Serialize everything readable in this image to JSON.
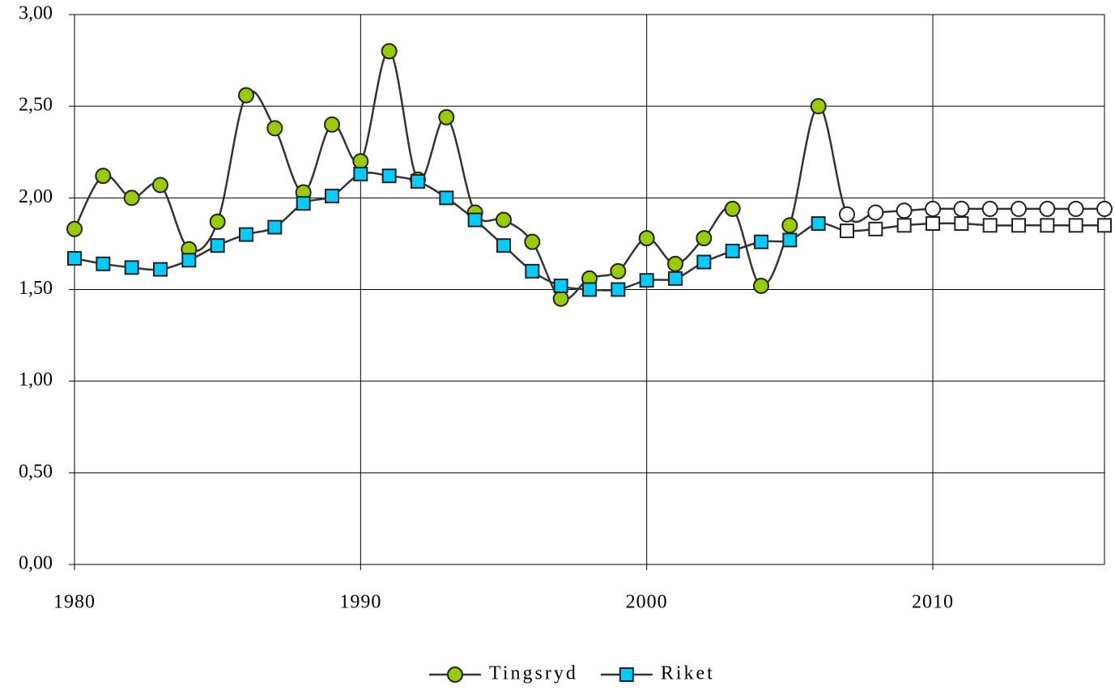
{
  "chart_data": {
    "type": "line",
    "x": [
      1980,
      1981,
      1982,
      1983,
      1984,
      1985,
      1986,
      1987,
      1988,
      1989,
      1990,
      1991,
      1992,
      1993,
      1994,
      1995,
      1996,
      1997,
      1998,
      1999,
      2000,
      2001,
      2002,
      2003,
      2004,
      2005,
      2006,
      2007,
      2008,
      2009,
      2010,
      2011,
      2012,
      2013,
      2014,
      2015,
      2016
    ],
    "series": [
      {
        "name": "Tingsryd",
        "color": "#99cc00",
        "marker": "circle",
        "values": [
          1.83,
          2.12,
          2.0,
          2.07,
          1.72,
          1.87,
          2.56,
          2.38,
          2.03,
          2.4,
          2.2,
          2.8,
          2.1,
          2.44,
          1.92,
          1.88,
          1.76,
          1.45,
          1.56,
          1.6,
          1.78,
          1.64,
          1.78,
          1.94,
          1.52,
          1.85,
          2.5,
          1.91,
          1.92,
          1.93,
          1.94,
          1.94,
          1.94,
          1.94,
          1.94,
          1.94,
          1.94
        ]
      },
      {
        "name": "Riket",
        "color": "#00ccff",
        "marker": "square",
        "values": [
          1.67,
          1.64,
          1.62,
          1.61,
          1.66,
          1.74,
          1.8,
          1.84,
          1.97,
          2.01,
          2.13,
          2.12,
          2.09,
          2.0,
          1.88,
          1.74,
          1.6,
          1.52,
          1.5,
          1.5,
          1.55,
          1.56,
          1.65,
          1.71,
          1.76,
          1.77,
          1.86,
          1.82,
          1.83,
          1.85,
          1.86,
          1.86,
          1.85,
          1.85,
          1.85,
          1.85,
          1.85
        ]
      }
    ],
    "hollow_from": 2007,
    "hollow_color": "#ffffff",
    "xlim": [
      1980,
      2016
    ],
    "xticks": [
      1980,
      1990,
      2000,
      2010
    ],
    "ylim": [
      0,
      3
    ],
    "yticks": [
      {
        "value": 0,
        "label": "0,00"
      },
      {
        "value": 0.5,
        "label": "0,50"
      },
      {
        "value": 1,
        "label": "1,00"
      },
      {
        "value": 1.5,
        "label": "1,50"
      },
      {
        "value": 2,
        "label": "2,00"
      },
      {
        "value": 2.5,
        "label": "2,50"
      },
      {
        "value": 3,
        "label": "3,00"
      }
    ],
    "grid": true,
    "smooth": true,
    "legend": "bottom"
  }
}
